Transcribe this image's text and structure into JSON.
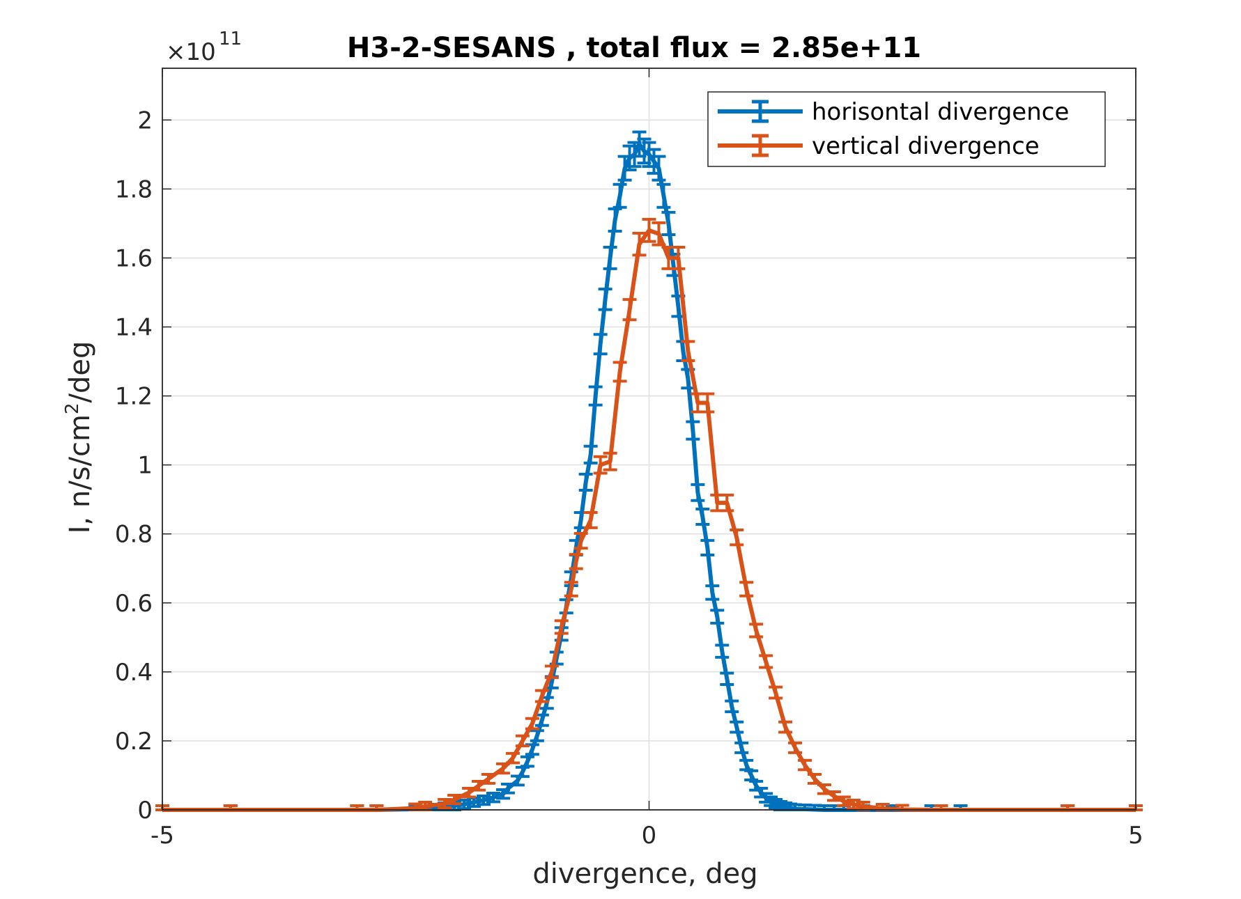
{
  "chart_data": {
    "type": "line",
    "title": "H3-2-SESANS , total flux =  2.85e+11",
    "xlabel": "divergence, deg",
    "ylabel_main": "I, n/s/cm",
    "ylabel_sup": "2",
    "ylabel_tail": "/deg",
    "y_exponent_base": "×10",
    "y_exponent_power": "11",
    "xlim": [
      -5,
      5
    ],
    "ylim": [
      0,
      2.15
    ],
    "x_ticks": [
      -5,
      0,
      5
    ],
    "x_tick_labels": [
      "-5",
      "0",
      "5"
    ],
    "y_ticks": [
      0,
      0.2,
      0.4,
      0.6,
      0.8,
      1,
      1.2,
      1.4,
      1.6,
      1.8,
      2
    ],
    "y_tick_labels": [
      "0",
      "0.2",
      "0.4",
      "0.6",
      "0.8",
      "1",
      "1.2",
      "1.4",
      "1.6",
      "1.8",
      "2"
    ],
    "grid": true,
    "legend_position": "top-right",
    "series": [
      {
        "name": "horisontal divergence",
        "color": "#0072bd",
        "x": [
          -5.0,
          -4.3,
          -3.0,
          -2.8,
          -2.4,
          -2.2,
          -2.1,
          -2.0,
          -1.9,
          -1.8,
          -1.7,
          -1.6,
          -1.5,
          -1.45,
          -1.35,
          -1.3,
          -1.25,
          -1.2,
          -1.15,
          -1.1,
          -1.05,
          -1.0,
          -0.95,
          -0.9,
          -0.85,
          -0.8,
          -0.75,
          -0.7,
          -0.65,
          -0.6,
          -0.55,
          -0.5,
          -0.45,
          -0.4,
          -0.35,
          -0.3,
          -0.25,
          -0.2,
          -0.15,
          -0.1,
          -0.05,
          0.0,
          0.05,
          0.1,
          0.15,
          0.2,
          0.25,
          0.3,
          0.35,
          0.4,
          0.45,
          0.5,
          0.55,
          0.6,
          0.65,
          0.7,
          0.75,
          0.8,
          0.85,
          0.9,
          0.95,
          1.0,
          1.05,
          1.1,
          1.15,
          1.2,
          1.25,
          1.3,
          1.35,
          1.4,
          1.45,
          1.5,
          1.6,
          1.7,
          1.8,
          1.9,
          2.0,
          2.2,
          2.5,
          2.9,
          3.2,
          4.3,
          5.0
        ],
        "y": [
          0.0,
          0.0,
          0.0,
          0.0,
          0.002,
          0.004,
          0.008,
          0.012,
          0.016,
          0.022,
          0.028,
          0.036,
          0.046,
          0.062,
          0.085,
          0.11,
          0.14,
          0.175,
          0.215,
          0.26,
          0.31,
          0.37,
          0.44,
          0.51,
          0.59,
          0.67,
          0.76,
          0.84,
          0.95,
          1.03,
          1.2,
          1.35,
          1.48,
          1.6,
          1.71,
          1.78,
          1.86,
          1.89,
          1.9,
          1.93,
          1.91,
          1.9,
          1.88,
          1.86,
          1.78,
          1.7,
          1.58,
          1.46,
          1.33,
          1.25,
          1.1,
          0.92,
          0.85,
          0.76,
          0.63,
          0.56,
          0.46,
          0.38,
          0.3,
          0.24,
          0.18,
          0.13,
          0.1,
          0.07,
          0.05,
          0.035,
          0.025,
          0.018,
          0.012,
          0.008,
          0.005,
          0.003,
          0.002,
          0.001,
          0.0,
          0.0,
          0.0,
          0.0,
          0.0,
          0.0,
          0.0,
          0.0,
          0.0
        ]
      },
      {
        "name": "vertical divergence",
        "color": "#d95319",
        "x": [
          -5.0,
          -4.3,
          -3.0,
          -2.8,
          -2.4,
          -2.3,
          -2.1,
          -2.0,
          -1.85,
          -1.75,
          -1.65,
          -1.5,
          -1.4,
          -1.3,
          -1.2,
          -1.1,
          -1.0,
          -0.9,
          -0.8,
          -0.75,
          -0.7,
          -0.6,
          -0.5,
          -0.4,
          -0.3,
          -0.2,
          -0.1,
          0.0,
          0.1,
          0.2,
          0.3,
          0.4,
          0.5,
          0.6,
          0.7,
          0.8,
          0.9,
          1.0,
          1.1,
          1.2,
          1.3,
          1.4,
          1.5,
          1.6,
          1.7,
          1.8,
          1.9,
          2.0,
          2.1,
          2.2,
          2.4,
          2.6,
          3.0,
          4.3,
          5.0
        ],
        "y": [
          0.0,
          0.0,
          0.0,
          0.0,
          0.005,
          0.01,
          0.018,
          0.03,
          0.05,
          0.07,
          0.09,
          0.12,
          0.15,
          0.2,
          0.25,
          0.33,
          0.4,
          0.53,
          0.64,
          0.72,
          0.78,
          0.84,
          1.0,
          1.01,
          1.27,
          1.45,
          1.64,
          1.68,
          1.67,
          1.6,
          1.6,
          1.33,
          1.18,
          1.18,
          0.89,
          0.89,
          0.79,
          0.64,
          0.52,
          0.43,
          0.34,
          0.24,
          0.18,
          0.13,
          0.09,
          0.06,
          0.04,
          0.025,
          0.016,
          0.01,
          0.004,
          0.001,
          0.0,
          0.0,
          0.0
        ]
      }
    ]
  }
}
